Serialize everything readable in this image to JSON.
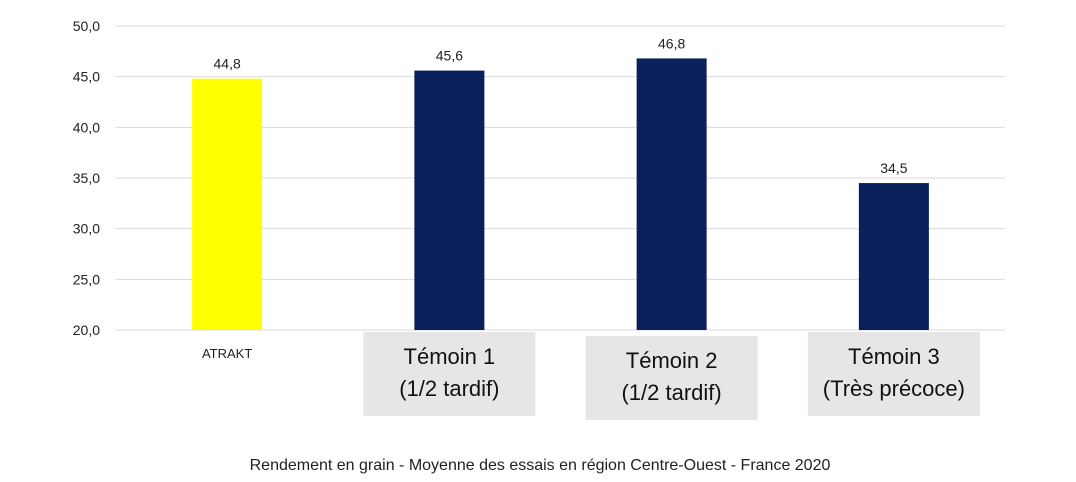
{
  "chart_data": {
    "type": "bar",
    "categories": [
      [
        "ATRAKT"
      ],
      [
        "Témoin 1",
        "(1/2 tardif)"
      ],
      [
        "Témoin 2",
        "(1/2 tardif)"
      ],
      [
        "Témoin 3",
        "(Très précoce)"
      ]
    ],
    "values": [
      44.8,
      45.6,
      46.8,
      34.5
    ],
    "value_labels": [
      "44,8",
      "45,6",
      "46,8",
      "34,5"
    ],
    "bar_colors": [
      "#ffff00",
      "#0a1f5c",
      "#0a1f5c",
      "#0a1f5c"
    ],
    "ylim": [
      20,
      50
    ],
    "yticks": [
      20,
      25,
      30,
      35,
      40,
      45,
      50
    ],
    "ytick_labels": [
      "20,0",
      "25,0",
      "30,0",
      "35,0",
      "40,0",
      "45,0",
      "50,0"
    ],
    "grid": true,
    "caption": "Rendement en grain - Moyenne des essais en région Centre-Ouest - France 2020"
  }
}
